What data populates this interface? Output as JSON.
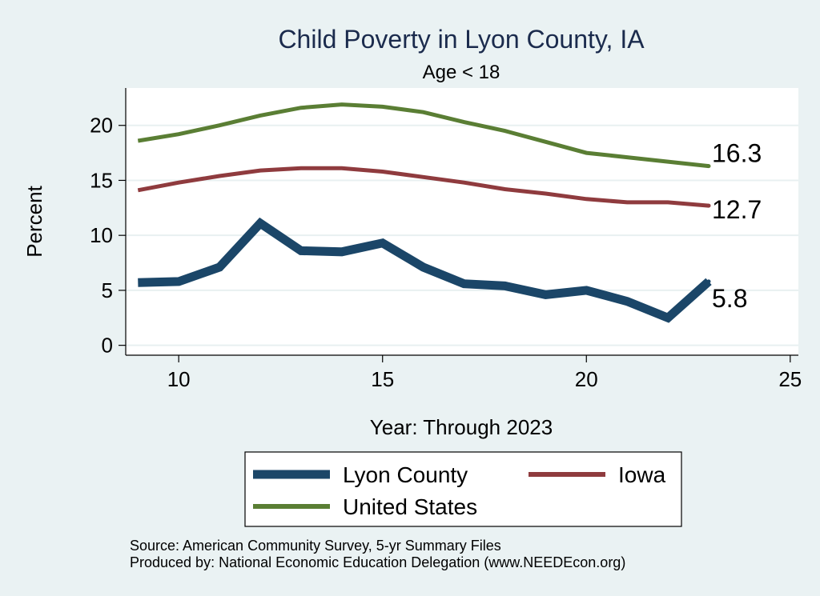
{
  "chart_data": {
    "type": "line",
    "title": "Child Poverty in Lyon County, IA",
    "subtitle": "Age < 18",
    "xlabel": "Year: Through 2023",
    "ylabel": "Percent",
    "xlim": [
      8.7,
      25.2
    ],
    "ylim": [
      -0.9,
      23.4
    ],
    "xticks": [
      10,
      15,
      20,
      25
    ],
    "yticks": [
      0,
      5,
      10,
      15,
      20
    ],
    "grid": true,
    "legend_position": "bottom",
    "series": [
      {
        "name": "Lyon County",
        "color": "#1b4668",
        "x": [
          9,
          10,
          11,
          12,
          13,
          14,
          15,
          16,
          17,
          18,
          19,
          20,
          21,
          22,
          23
        ],
        "values": [
          5.7,
          5.8,
          7.1,
          11.1,
          8.6,
          8.5,
          9.3,
          7.1,
          5.6,
          5.4,
          4.6,
          5.0,
          4.0,
          2.5,
          5.8
        ],
        "end_label": "5.8"
      },
      {
        "name": "Iowa",
        "color": "#8f3b3e",
        "x": [
          9,
          10,
          11,
          12,
          13,
          14,
          15,
          16,
          17,
          18,
          19,
          20,
          21,
          22,
          23
        ],
        "values": [
          14.1,
          14.8,
          15.4,
          15.9,
          16.1,
          16.1,
          15.8,
          15.3,
          14.8,
          14.2,
          13.8,
          13.3,
          13.0,
          13.0,
          12.7
        ],
        "end_label": "12.7"
      },
      {
        "name": "United States",
        "color": "#5a7e34",
        "x": [
          9,
          10,
          11,
          12,
          13,
          14,
          15,
          16,
          17,
          18,
          19,
          20,
          21,
          22,
          23
        ],
        "values": [
          18.6,
          19.2,
          20.0,
          20.9,
          21.6,
          21.9,
          21.7,
          21.2,
          20.3,
          19.5,
          18.5,
          17.5,
          17.1,
          16.7,
          16.3
        ],
        "end_label": "16.3"
      }
    ],
    "notes": [
      "Source: American Community Survey, 5-yr Summary Files",
      "Produced by: National Economic Education Delegation (www.NEEDEcon.org)"
    ]
  }
}
